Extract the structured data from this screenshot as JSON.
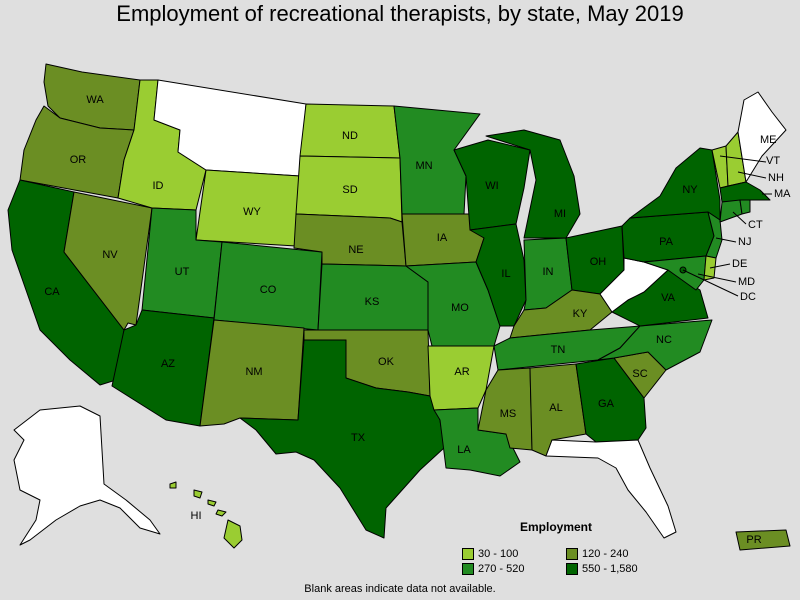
{
  "title": "Employment of recreational therapists, by state, May 2019",
  "legend": {
    "title": "Employment",
    "bins": [
      {
        "label": "30 - 100",
        "color": "#9acd32"
      },
      {
        "label": "120 - 240",
        "color": "#6b8e23"
      },
      {
        "label": "270 - 520",
        "color": "#228b22"
      },
      {
        "label": "550 - 1,580",
        "color": "#006400"
      }
    ]
  },
  "footnote": "Blank areas indicate data not available.",
  "colors": {
    "background": "#dfdfdf",
    "no_data": "#ffffff",
    "bin_30_100": "#9acd32",
    "bin_120_240": "#6b8e23",
    "bin_270_520": "#228b22",
    "bin_550_1580": "#006400"
  },
  "states": {
    "WA": {
      "label": "WA",
      "bin": "120 - 240"
    },
    "OR": {
      "label": "OR",
      "bin": "120 - 240"
    },
    "CA": {
      "label": "CA",
      "bin": "550 - 1,580"
    },
    "NV": {
      "label": "NV",
      "bin": "120 - 240"
    },
    "ID": {
      "label": "ID",
      "bin": "30 - 100"
    },
    "MT": {
      "label": "",
      "bin": "none"
    },
    "WY": {
      "label": "WY",
      "bin": "30 - 100"
    },
    "UT": {
      "label": "UT",
      "bin": "270 - 520"
    },
    "AZ": {
      "label": "AZ",
      "bin": "550 - 1,580"
    },
    "CO": {
      "label": "CO",
      "bin": "270 - 520"
    },
    "NM": {
      "label": "NM",
      "bin": "120 - 240"
    },
    "ND": {
      "label": "ND",
      "bin": "30 - 100"
    },
    "SD": {
      "label": "SD",
      "bin": "30 - 100"
    },
    "NE": {
      "label": "NE",
      "bin": "120 - 240"
    },
    "KS": {
      "label": "KS",
      "bin": "270 - 520"
    },
    "OK": {
      "label": "OK",
      "bin": "120 - 240"
    },
    "TX": {
      "label": "TX",
      "bin": "550 - 1,580"
    },
    "MN": {
      "label": "MN",
      "bin": "270 - 520"
    },
    "IA": {
      "label": "IA",
      "bin": "120 - 240"
    },
    "MO": {
      "label": "MO",
      "bin": "270 - 520"
    },
    "AR": {
      "label": "AR",
      "bin": "30 - 100"
    },
    "LA": {
      "label": "LA",
      "bin": "270 - 520"
    },
    "WI": {
      "label": "WI",
      "bin": "550 - 1,580"
    },
    "IL": {
      "label": "IL",
      "bin": "550 - 1,580"
    },
    "MI": {
      "label": "MI",
      "bin": "550 - 1,580"
    },
    "IN": {
      "label": "IN",
      "bin": "270 - 520"
    },
    "OH": {
      "label": "OH",
      "bin": "550 - 1,580"
    },
    "KY": {
      "label": "KY",
      "bin": "120 - 240"
    },
    "TN": {
      "label": "TN",
      "bin": "270 - 520"
    },
    "MS": {
      "label": "MS",
      "bin": "120 - 240"
    },
    "AL": {
      "label": "AL",
      "bin": "120 - 240"
    },
    "GA": {
      "label": "GA",
      "bin": "550 - 1,580"
    },
    "FL": {
      "label": "",
      "bin": "none"
    },
    "SC": {
      "label": "SC",
      "bin": "120 - 240"
    },
    "NC": {
      "label": "NC",
      "bin": "270 - 520"
    },
    "VA": {
      "label": "VA",
      "bin": "550 - 1,580"
    },
    "WV": {
      "label": "",
      "bin": "none"
    },
    "PA": {
      "label": "PA",
      "bin": "550 - 1,580"
    },
    "NY": {
      "label": "NY",
      "bin": "550 - 1,580"
    },
    "NJ": {
      "label": "NJ",
      "bin": "270 - 520"
    },
    "DE": {
      "label": "DE",
      "bin": "30 - 100"
    },
    "MD": {
      "label": "MD",
      "bin": "270 - 520"
    },
    "DC": {
      "label": "DC",
      "bin": "550 - 1,580"
    },
    "CT": {
      "label": "CT",
      "bin": "270 - 520"
    },
    "MA": {
      "label": "MA",
      "bin": "550 - 1,580"
    },
    "VT": {
      "label": "VT",
      "bin": "30 - 100"
    },
    "NH": {
      "label": "NH",
      "bin": "30 - 100"
    },
    "ME": {
      "label": "ME",
      "bin": "none"
    },
    "RI": {
      "label": "",
      "bin": "270 - 520"
    },
    "AK": {
      "label": "",
      "bin": "none"
    },
    "HI": {
      "label": "HI",
      "bin": "30 - 100"
    },
    "PR": {
      "label": "PR",
      "bin": "120 - 240"
    }
  }
}
